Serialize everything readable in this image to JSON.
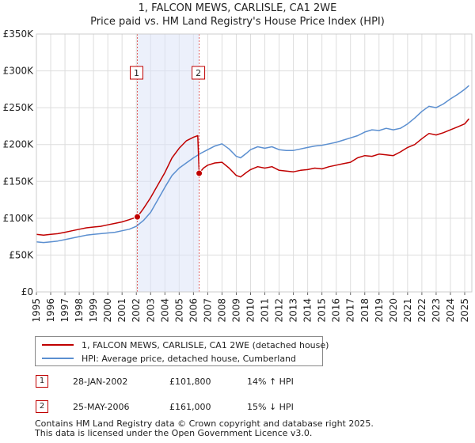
{
  "title_line1": "1, FALCON MEWS, CARLISLE, CA1 2WE",
  "title_line2": "Price paid vs. HM Land Registry's House Price Index (HPI)",
  "chart_data": {
    "type": "line",
    "title": "1, FALCON MEWS, CARLISLE, CA1 2WE — Price paid vs. HM Land Registry's House Price Index (HPI)",
    "xlabel": "",
    "ylabel": "",
    "xlim": [
      1995,
      2025.5
    ],
    "ylim": [
      0,
      350000
    ],
    "x_ticks": [
      "1995",
      "1996",
      "1997",
      "1998",
      "1999",
      "2000",
      "2001",
      "2002",
      "2003",
      "2004",
      "2005",
      "2006",
      "2007",
      "2008",
      "2009",
      "2010",
      "2011",
      "2012",
      "2013",
      "2014",
      "2015",
      "2016",
      "2017",
      "2018",
      "2019",
      "2020",
      "2021",
      "2022",
      "2023",
      "2024",
      "2025"
    ],
    "y_ticks": [
      {
        "value": 0,
        "label": "£0"
      },
      {
        "value": 50000,
        "label": "£50K"
      },
      {
        "value": 100000,
        "label": "£100K"
      },
      {
        "value": 150000,
        "label": "£150K"
      },
      {
        "value": 200000,
        "label": "£200K"
      },
      {
        "value": 250000,
        "label": "£250K"
      },
      {
        "value": 300000,
        "label": "£300K"
      },
      {
        "value": 350000,
        "label": "£350K"
      }
    ],
    "grid": true,
    "shaded_region": {
      "from": 2002.07,
      "to": 2006.4,
      "color": "#dde4f7"
    },
    "series": [
      {
        "name": "1, FALCON MEWS, CARLISLE, CA1 2WE (detached house)",
        "color": "#c00000",
        "x": [
          1995.0,
          1995.5,
          1996.0,
          1996.5,
          1997.0,
          1997.5,
          1998.0,
          1998.5,
          1999.0,
          1999.5,
          2000.0,
          2000.5,
          2001.0,
          2001.5,
          2002.07,
          2002.5,
          2003.0,
          2003.5,
          2004.0,
          2004.5,
          2005.0,
          2005.5,
          2006.0,
          2006.3,
          2006.4,
          2006.7,
          2007.0,
          2007.5,
          2008.0,
          2008.5,
          2009.0,
          2009.3,
          2009.7,
          2010.0,
          2010.5,
          2011.0,
          2011.5,
          2012.0,
          2012.5,
          2013.0,
          2013.5,
          2014.0,
          2014.5,
          2015.0,
          2015.5,
          2016.0,
          2016.5,
          2017.0,
          2017.5,
          2018.0,
          2018.5,
          2019.0,
          2019.5,
          2020.0,
          2020.5,
          2021.0,
          2021.5,
          2022.0,
          2022.5,
          2023.0,
          2023.5,
          2024.0,
          2024.5,
          2025.0,
          2025.3
        ],
        "values": [
          78000,
          77000,
          78000,
          79000,
          81000,
          83000,
          85000,
          87000,
          88000,
          89000,
          91000,
          93000,
          95000,
          98000,
          101800,
          113000,
          128000,
          145000,
          162000,
          182000,
          195000,
          205000,
          210000,
          212000,
          161000,
          168000,
          172000,
          175000,
          176000,
          168000,
          158000,
          156000,
          162000,
          166000,
          170000,
          168000,
          170000,
          165000,
          164000,
          163000,
          165000,
          166000,
          168000,
          167000,
          170000,
          172000,
          174000,
          176000,
          182000,
          185000,
          184000,
          187000,
          186000,
          185000,
          190000,
          196000,
          200000,
          208000,
          215000,
          213000,
          216000,
          220000,
          224000,
          228000,
          235000
        ]
      },
      {
        "name": "HPI: Average price, detached house, Cumberland",
        "color": "#5b8fd0",
        "x": [
          1995.0,
          1995.5,
          1996.0,
          1996.5,
          1997.0,
          1997.5,
          1998.0,
          1998.5,
          1999.0,
          1999.5,
          2000.0,
          2000.5,
          2001.0,
          2001.5,
          2002.0,
          2002.5,
          2003.0,
          2003.5,
          2004.0,
          2004.5,
          2005.0,
          2005.5,
          2006.0,
          2006.5,
          2007.0,
          2007.5,
          2008.0,
          2008.5,
          2009.0,
          2009.3,
          2009.7,
          2010.0,
          2010.5,
          2011.0,
          2011.5,
          2012.0,
          2012.5,
          2013.0,
          2013.5,
          2014.0,
          2014.5,
          2015.0,
          2015.5,
          2016.0,
          2016.5,
          2017.0,
          2017.5,
          2018.0,
          2018.5,
          2019.0,
          2019.5,
          2020.0,
          2020.5,
          2021.0,
          2021.5,
          2022.0,
          2022.5,
          2023.0,
          2023.5,
          2024.0,
          2024.5,
          2025.0,
          2025.3
        ],
        "values": [
          68000,
          67000,
          68000,
          69000,
          71000,
          73000,
          75000,
          77000,
          78000,
          79000,
          80000,
          81000,
          83000,
          85000,
          89000,
          97000,
          108000,
          125000,
          142000,
          158000,
          168000,
          175000,
          182000,
          188000,
          193000,
          198000,
          201000,
          194000,
          184000,
          182000,
          188000,
          193000,
          197000,
          195000,
          197000,
          193000,
          192000,
          192000,
          194000,
          196000,
          198000,
          199000,
          201000,
          203000,
          206000,
          209000,
          212000,
          217000,
          220000,
          219000,
          222000,
          220000,
          222000,
          228000,
          236000,
          245000,
          252000,
          250000,
          255000,
          262000,
          268000,
          275000,
          280000
        ]
      }
    ],
    "transactions": [
      {
        "marker": "1",
        "x": 2002.07,
        "value": 101800,
        "date": "28-JAN-2002",
        "price": "£101,800",
        "hpi": "14% ↑ HPI"
      },
      {
        "marker": "2",
        "x": 2006.4,
        "value": 161000,
        "date": "25-MAY-2006",
        "price": "£161,000",
        "hpi": "15% ↓ HPI"
      }
    ],
    "legend_position": "bottom"
  },
  "legend": {
    "item1": "1, FALCON MEWS, CARLISLE, CA1 2WE (detached house)",
    "item2": "HPI: Average price, detached house, Cumberland",
    "color1": "#c00000",
    "color2": "#5b8fd0"
  },
  "table": {
    "row1": {
      "marker": "1",
      "date": "28-JAN-2002",
      "price": "£101,800",
      "hpi": "14% ↑ HPI"
    },
    "row2": {
      "marker": "2",
      "date": "25-MAY-2006",
      "price": "£161,000",
      "hpi": "15% ↓ HPI"
    }
  },
  "footer": {
    "line1": "Contains HM Land Registry data © Crown copyright and database right 2025.",
    "line2": "This data is licensed under the Open Government Licence v3.0."
  }
}
